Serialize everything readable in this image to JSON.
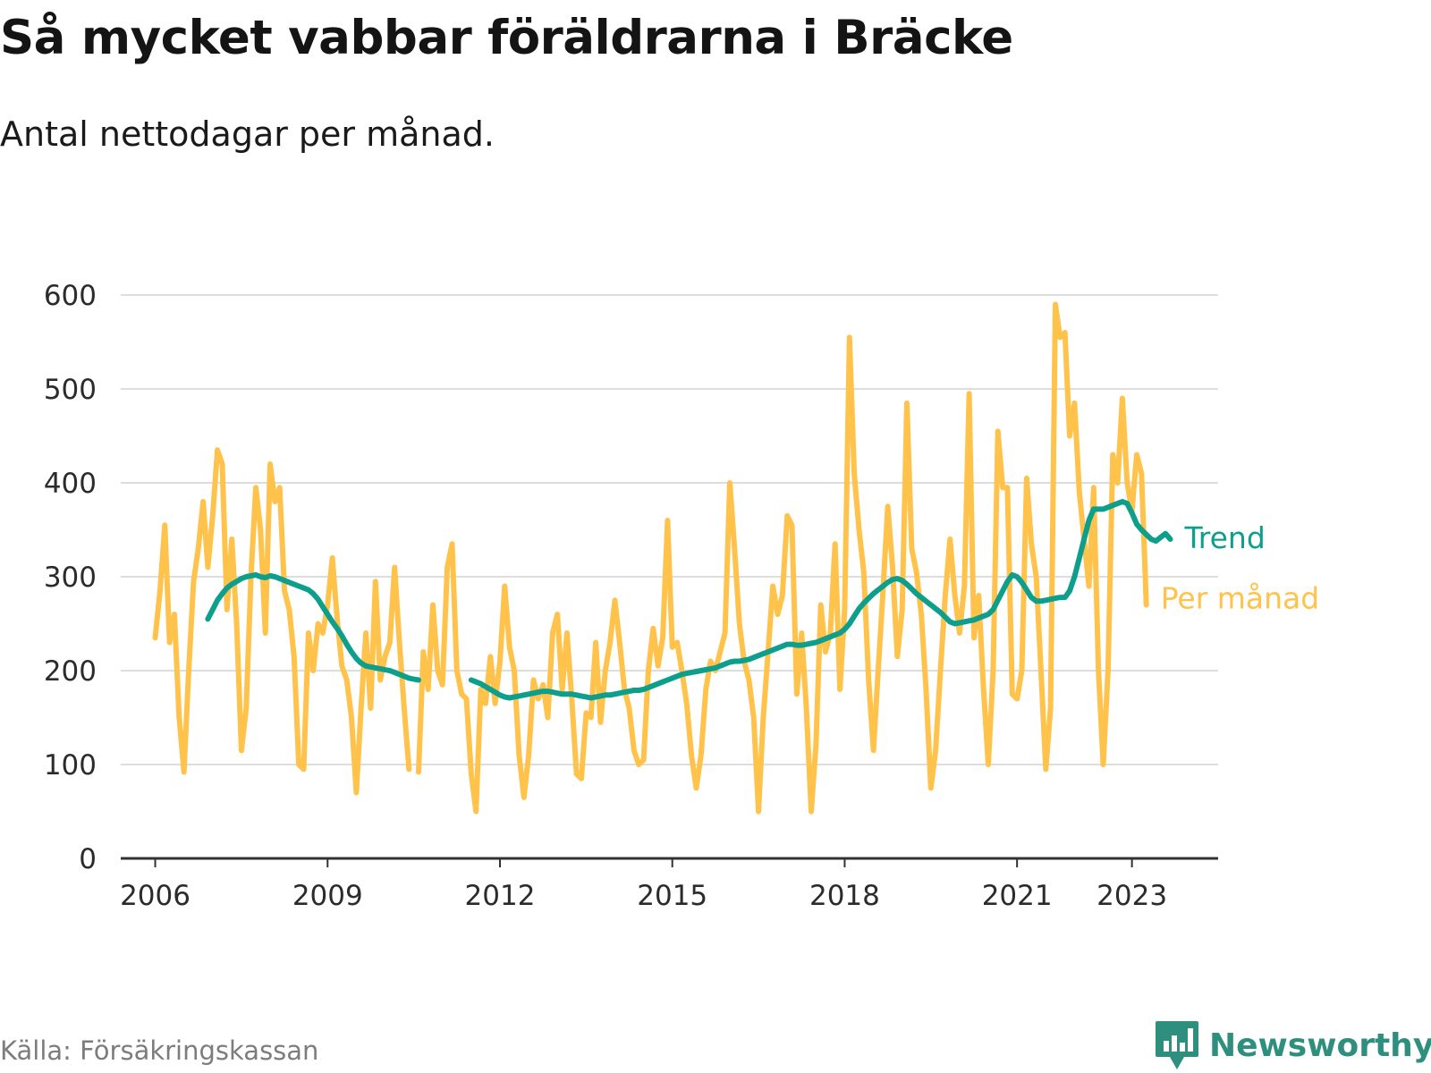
{
  "title": "Så mycket vabbar föräldrarna i Bräcke",
  "subtitle": "Antal nettodagar per månad.",
  "source": "Källa: Försäkringskassan",
  "brand": "Newsworthy",
  "colors": {
    "monthly": "#ffc24a",
    "trend": "#0e9e8c",
    "grid": "#dddddd",
    "axis": "#333333",
    "brand": "#2f8f7f"
  },
  "chart_data": {
    "type": "line",
    "title": "Så mycket vabbar föräldrarna i Bräcke",
    "ylabel": "Antal nettodagar per månad",
    "xlabel": "",
    "ylim": [
      0,
      600
    ],
    "xlim": [
      2005.4,
      2024.5
    ],
    "y_ticks": [
      0,
      100,
      200,
      300,
      400,
      500,
      600
    ],
    "x_ticks": [
      2006,
      2009,
      2012,
      2015,
      2018,
      2021,
      2023
    ],
    "x_tick_labels": [
      "2006",
      "2009",
      "2012",
      "2015",
      "2018",
      "2021",
      "2023"
    ],
    "series": [
      {
        "name": "Per månad",
        "x_start": 2006.0,
        "x_step": 0.0833333,
        "values": [
          235,
          285,
          355,
          230,
          260,
          150,
          92,
          200,
          295,
          330,
          380,
          310,
          365,
          435,
          420,
          265,
          340,
          250,
          115,
          160,
          300,
          395,
          350,
          240,
          420,
          380,
          395,
          285,
          265,
          215,
          100,
          95,
          240,
          200,
          250,
          240,
          270,
          320,
          255,
          205,
          190,
          150,
          70,
          160,
          240,
          160,
          295,
          190,
          215,
          230,
          310,
          230,
          160,
          95,
          null,
          92,
          220,
          180,
          270,
          200,
          185,
          310,
          335,
          200,
          175,
          170,
          90,
          50,
          180,
          165,
          215,
          165,
          210,
          290,
          225,
          200,
          110,
          65,
          110,
          190,
          170,
          185,
          150,
          240,
          260,
          180,
          240,
          170,
          90,
          85,
          155,
          150,
          230,
          145,
          200,
          230,
          275,
          230,
          180,
          160,
          115,
          100,
          105,
          200,
          245,
          205,
          235,
          360,
          225,
          230,
          200,
          165,
          110,
          75,
          110,
          180,
          210,
          200,
          220,
          240,
          400,
          330,
          250,
          210,
          190,
          150,
          50,
          150,
          220,
          290,
          260,
          280,
          365,
          355,
          175,
          240,
          160,
          50,
          120,
          270,
          220,
          240,
          335,
          180,
          265,
          555,
          410,
          350,
          305,
          190,
          115,
          200,
          285,
          375,
          310,
          215,
          265,
          485,
          330,
          305,
          260,
          180,
          75,
          115,
          200,
          280,
          340,
          280,
          240,
          290,
          495,
          235,
          280,
          180,
          100,
          200,
          455,
          395,
          395,
          175,
          170,
          200,
          405,
          335,
          300,
          200,
          95,
          160,
          590,
          555,
          560,
          450,
          485,
          390,
          340,
          290,
          395,
          200,
          100,
          200,
          430,
          400,
          490,
          400,
          370,
          430,
          410,
          270
        ]
      },
      {
        "name": "Trend",
        "x_start": 2006.9167,
        "x_step": 0.0833333,
        "values": [
          255,
          265,
          275,
          282,
          288,
          292,
          295,
          298,
          300,
          301,
          302,
          300,
          299,
          301,
          300,
          298,
          296,
          294,
          292,
          290,
          288,
          286,
          282,
          276,
          268,
          260,
          252,
          245,
          237,
          228,
          220,
          213,
          208,
          205,
          204,
          203,
          202,
          201,
          200,
          198,
          196,
          194,
          192,
          191,
          190,
          null,
          null,
          null,
          null,
          null,
          null,
          null,
          null,
          null,
          null,
          190,
          188,
          186,
          183,
          180,
          177,
          174,
          172,
          171,
          172,
          173,
          174,
          175,
          176,
          177,
          178,
          178,
          177,
          176,
          175,
          175,
          175,
          174,
          173,
          172,
          171,
          172,
          173,
          174,
          174,
          175,
          176,
          177,
          178,
          179,
          179,
          180,
          182,
          184,
          186,
          188,
          190,
          192,
          194,
          196,
          197,
          198,
          199,
          200,
          201,
          202,
          203,
          205,
          207,
          209,
          210,
          210,
          211,
          212,
          214,
          216,
          218,
          220,
          222,
          224,
          226,
          228,
          228,
          227,
          227,
          228,
          229,
          230,
          232,
          234,
          236,
          238,
          240,
          244,
          250,
          258,
          266,
          272,
          277,
          282,
          286,
          290,
          294,
          297,
          298,
          296,
          292,
          287,
          282,
          278,
          274,
          270,
          266,
          262,
          257,
          252,
          250,
          251,
          252,
          253,
          254,
          256,
          258,
          260,
          265,
          275,
          285,
          295,
          302,
          300,
          294,
          286,
          278,
          274,
          274,
          275,
          276,
          277,
          278,
          278,
          285,
          300,
          320,
          340,
          360,
          372,
          372,
          372,
          374,
          376,
          378,
          380,
          378,
          368,
          356,
          350,
          345,
          340,
          338,
          342,
          346,
          340
        ]
      }
    ],
    "legend": [
      {
        "name": "Trend",
        "placement": "right-of-line-end"
      },
      {
        "name": "Per månad",
        "placement": "right-of-line-end"
      }
    ]
  }
}
